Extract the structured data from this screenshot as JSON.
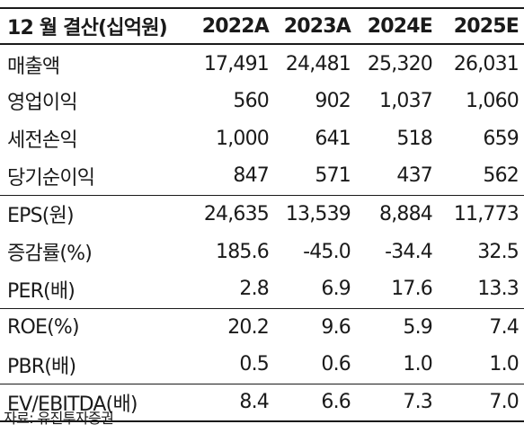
{
  "table": {
    "header": {
      "label": "12 월 결산(십억원)",
      "years": [
        "2022A",
        "2023A",
        "2024E",
        "2025E"
      ]
    },
    "rows": [
      {
        "label": "매출액",
        "values": [
          "17,491",
          "24,481",
          "25,320",
          "26,031"
        ]
      },
      {
        "label": "영업이익",
        "values": [
          "560",
          "902",
          "1,037",
          "1,060"
        ]
      },
      {
        "label": "세전손익",
        "values": [
          "1,000",
          "641",
          "518",
          "659"
        ]
      },
      {
        "label": "당기순이익",
        "values": [
          "847",
          "571",
          "437",
          "562"
        ]
      },
      {
        "label": "EPS(원)",
        "values": [
          "24,635",
          "13,539",
          "8,884",
          "11,773"
        ]
      },
      {
        "label": "증감률(%)",
        "values": [
          "185.6",
          "-45.0",
          "-34.4",
          "32.5"
        ]
      },
      {
        "label": "PER(배)",
        "values": [
          "2.8",
          "6.9",
          "17.6",
          "13.3"
        ]
      },
      {
        "label": "ROE(%)",
        "values": [
          "20.2",
          "9.6",
          "5.9",
          "7.4"
        ]
      },
      {
        "label": "PBR(배)",
        "values": [
          "0.5",
          "0.6",
          "1.0",
          "1.0"
        ]
      },
      {
        "label": "EV/EBITDA(배)",
        "values": [
          "8.4",
          "6.6",
          "7.3",
          "7.0"
        ]
      }
    ]
  },
  "source": "자료: 유진투자증권"
}
